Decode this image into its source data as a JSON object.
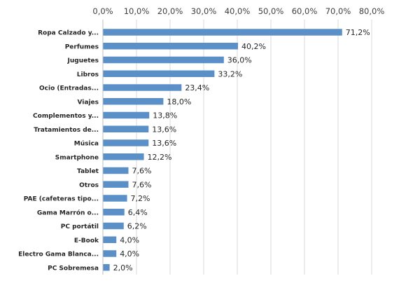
{
  "chart_data": {
    "type": "bar",
    "orientation": "horizontal",
    "title": "",
    "xlabel": "",
    "ylabel": "",
    "xlim": [
      0,
      80
    ],
    "x_ticks": [
      0,
      10,
      20,
      30,
      40,
      50,
      60,
      70,
      80
    ],
    "x_tick_labels": [
      "0,0%",
      "10,0%",
      "20,0%",
      "30,0%",
      "40,0%",
      "50,0%",
      "60,0%",
      "70,0%",
      "80,0%"
    ],
    "x_axis_position": "top",
    "grid": true,
    "legend": "none",
    "bar_color": "#5B8FC7",
    "categories": [
      "Ropa  Calzado y...",
      "Perfumes",
      "Juguetes",
      "Libros",
      "Ocio (Entradas...",
      "Viajes",
      "Complementos y...",
      "Tratamientos de...",
      "Música",
      "Smartphone",
      "Tablet",
      "Otros",
      "PAE (cafeteras tipo...",
      "Gama Marrón o...",
      "PC portátil",
      "E-Book",
      "Electro Gama Blanca...",
      "PC Sobremesa"
    ],
    "values": [
      71.2,
      40.2,
      36.0,
      33.2,
      23.4,
      18.0,
      13.8,
      13.6,
      13.6,
      12.2,
      7.6,
      7.6,
      7.2,
      6.4,
      6.2,
      4.0,
      4.0,
      2.0
    ],
    "value_labels": [
      "71,2%",
      "40,2%",
      "36,0%",
      "33,2%",
      "23,4%",
      "18,0%",
      "13,8%",
      "13,6%",
      "13,6%",
      "12,2%",
      "7,6%",
      "7,6%",
      "7,2%",
      "6,4%",
      "6,2%",
      "4,0%",
      "4,0%",
      "2,0%"
    ]
  }
}
